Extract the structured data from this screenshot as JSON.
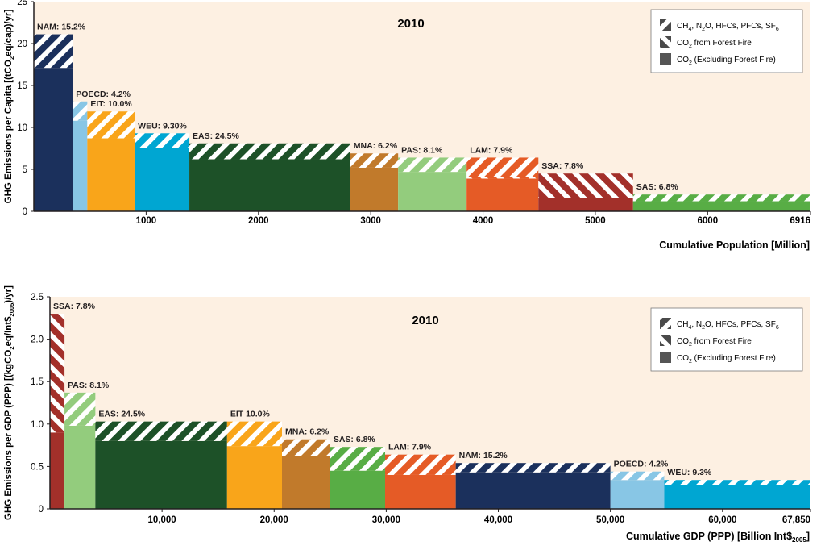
{
  "legend": {
    "ch4": {
      "prefix": "CH",
      "s1": "4",
      "mid1": ", N",
      "s2": "2",
      "mid2": "O, HFCs, PFCs, SF",
      "s3": "6"
    },
    "fire": {
      "prefix": "CO",
      "s1": "2",
      "rest": " from Forest Fire"
    },
    "excl": {
      "prefix": "CO",
      "s1": "2",
      "rest": " (Excluding Forest Fire)"
    }
  },
  "chart_data": [
    {
      "type": "bar",
      "title": "2010",
      "ylabel": {
        "a": "GHG Emissions per Capita [(tCO",
        "sub": "2",
        "b": "eq/cap)/yr]"
      },
      "xlabel": "Cumulative Population [Million]",
      "xlim": [
        0,
        6916
      ],
      "ylim": [
        0,
        25
      ],
      "xticks": [
        {
          "v": 1000,
          "label": "1000"
        },
        {
          "v": 2000,
          "label": "2000"
        },
        {
          "v": 3000,
          "label": "3000"
        },
        {
          "v": 4000,
          "label": "4000"
        },
        {
          "v": 5000,
          "label": "5000"
        },
        {
          "v": 6000,
          "label": "6000"
        },
        {
          "v": 6916,
          "label": "6916"
        }
      ],
      "yticks": [
        {
          "v": 0,
          "label": "0"
        },
        {
          "v": 5,
          "label": "5"
        },
        {
          "v": 10,
          "label": "10"
        },
        {
          "v": 15,
          "label": "15"
        },
        {
          "v": 20,
          "label": "20"
        },
        {
          "v": 25,
          "label": "25"
        }
      ],
      "regions": [
        {
          "label": "NAM: 15.2%",
          "start": 0,
          "end": 346,
          "co2": 17.1,
          "fire": 0,
          "other": 4.0,
          "color": "#1b305c"
        },
        {
          "label": "POECD: 4.2%",
          "start": 346,
          "end": 476,
          "co2": 10.8,
          "fire": 0,
          "other": 2.3,
          "color": "#88c6e5"
        },
        {
          "label": "EIT: 10.0%",
          "start": 476,
          "end": 898,
          "co2": 8.7,
          "fire": 0,
          "other": 3.2,
          "color": "#f9a51a"
        },
        {
          "label": "WEU: 9.30%",
          "start": 898,
          "end": 1385,
          "co2": 7.5,
          "fire": 0,
          "other": 1.8,
          "color": "#00a6d2"
        },
        {
          "label": "EAS: 24.5%",
          "start": 1385,
          "end": 2818,
          "co2": 6.2,
          "fire": 0,
          "other": 1.9,
          "color": "#1d5128"
        },
        {
          "label": "MNA: 6.2%",
          "start": 2818,
          "end": 3244,
          "co2": 5.2,
          "fire": 0,
          "other": 1.7,
          "color": "#c17a2b"
        },
        {
          "label": "PAS: 8.1%",
          "start": 3244,
          "end": 3854,
          "co2": 4.7,
          "fire": 0,
          "other": 1.7,
          "color": "#93cc7d"
        },
        {
          "label": "LAM: 7.9%",
          "start": 3854,
          "end": 4493,
          "co2": 3.9,
          "fire": 0.2,
          "other": 2.3,
          "color": "#e55b26"
        },
        {
          "label": "SSA: 7.8%",
          "start": 4493,
          "end": 5336,
          "co2": 1.6,
          "fire": 2.9,
          "other": 0,
          "color": "#a3302a"
        },
        {
          "label": "SAS: 6.8%",
          "start": 5336,
          "end": 6916,
          "co2": 1.2,
          "fire": 0,
          "other": 0.8,
          "color": "#58ad45"
        }
      ]
    },
    {
      "type": "bar",
      "title": "2010",
      "ylabel": {
        "a": "GHG Emissions per GDP (PPP) [(kgCO",
        "sub": "2",
        "b": "eq/Int$",
        "sub2": "2005",
        "c": ")/yr]"
      },
      "xlabel": {
        "a": "Cumulative GDP (PPP) [Billion Int$",
        "sub": "2005",
        "c": "]"
      },
      "xlim": [
        0,
        67850
      ],
      "ylim": [
        0,
        2.5
      ],
      "xticks": [
        {
          "v": 10000,
          "label": "10,000"
        },
        {
          "v": 20000,
          "label": "20,000"
        },
        {
          "v": 30000,
          "label": "30,000"
        },
        {
          "v": 40000,
          "label": "40,000"
        },
        {
          "v": 50000,
          "label": "50,000"
        },
        {
          "v": 60000,
          "label": "60,000"
        },
        {
          "v": 67850,
          "label": "67,850"
        }
      ],
      "yticks": [
        {
          "v": 0,
          "label": "0"
        },
        {
          "v": 0.5,
          "label": "0.5"
        },
        {
          "v": 1.0,
          "label": "1.0"
        },
        {
          "v": 1.5,
          "label": "1.5"
        },
        {
          "v": 2.0,
          "label": "2.0"
        },
        {
          "v": 2.5,
          "label": "2.5"
        }
      ],
      "regions": [
        {
          "label": "SSA: 7.8%",
          "start": 0,
          "end": 1300,
          "co2": 0.9,
          "fire": 1.4,
          "other": 0,
          "color": "#a3302a"
        },
        {
          "label": "PAS: 8.1%",
          "start": 1300,
          "end": 4050,
          "co2": 0.98,
          "fire": 0,
          "other": 0.39,
          "color": "#93cc7d"
        },
        {
          "label": "EAS: 24.5%",
          "start": 4050,
          "end": 15800,
          "co2": 0.8,
          "fire": 0,
          "other": 0.23,
          "color": "#1d5128"
        },
        {
          "label": "EIT 10.0%",
          "start": 15800,
          "end": 20700,
          "co2": 0.74,
          "fire": 0,
          "other": 0.29,
          "color": "#f9a51a"
        },
        {
          "label": "MNA: 6.2%",
          "start": 20700,
          "end": 25000,
          "co2": 0.62,
          "fire": 0,
          "other": 0.2,
          "color": "#c17a2b"
        },
        {
          "label": "SAS: 6.8%",
          "start": 25000,
          "end": 29900,
          "co2": 0.45,
          "fire": 0,
          "other": 0.28,
          "color": "#58ad45"
        },
        {
          "label": "LAM: 7.9%",
          "start": 29900,
          "end": 36200,
          "co2": 0.4,
          "fire": 0,
          "other": 0.24,
          "color": "#e55b26"
        },
        {
          "label": "NAM: 15.2%",
          "start": 36200,
          "end": 50000,
          "co2": 0.43,
          "fire": 0,
          "other": 0.11,
          "color": "#1b305c"
        },
        {
          "label": "POECD: 4.2%",
          "start": 50000,
          "end": 54800,
          "co2": 0.34,
          "fire": 0,
          "other": 0.1,
          "color": "#88c6e5"
        },
        {
          "label": "WEU: 9.3%",
          "start": 54800,
          "end": 67850,
          "co2": 0.28,
          "fire": 0,
          "other": 0.06,
          "color": "#00a6d2"
        }
      ]
    }
  ]
}
